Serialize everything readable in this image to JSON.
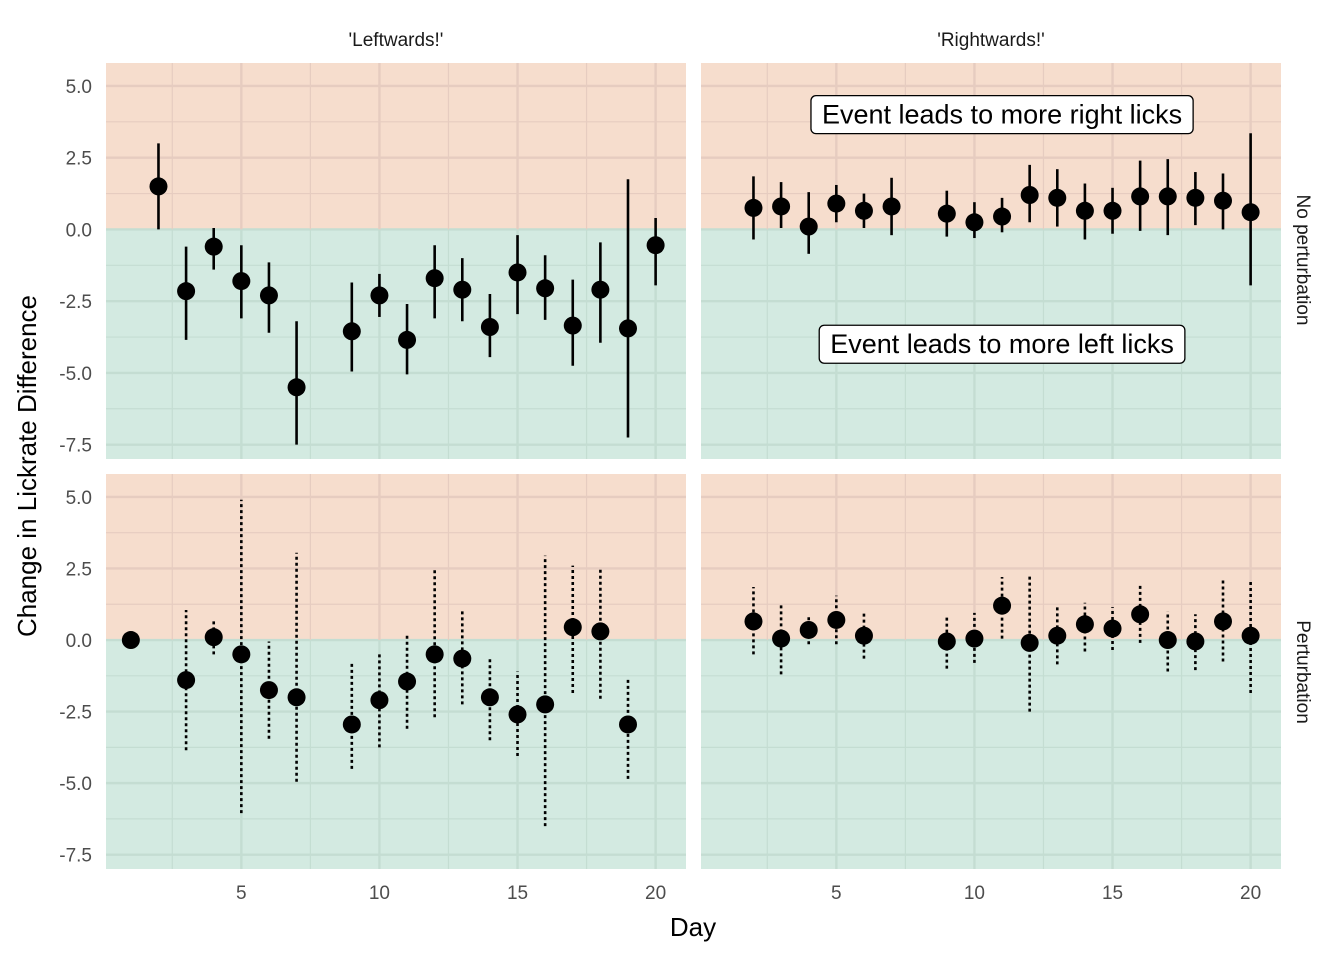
{
  "chart_data": {
    "type": "scatter",
    "xlabel": "Day",
    "ylabel": "Change in Lickrate Difference",
    "xlim": [
      0.1,
      21.1
    ],
    "ylim": [
      -8.0,
      5.8
    ],
    "x_ticks": [
      5,
      10,
      15,
      20
    ],
    "y_ticks": [
      -7.5,
      -5.0,
      -2.5,
      0.0,
      2.5,
      5.0
    ],
    "x_tick_labels": [
      "5",
      "10",
      "15",
      "20"
    ],
    "y_tick_labels": [
      "-7.5",
      "-5.0",
      "-2.5",
      "0.0",
      "2.5",
      "5.0"
    ],
    "grid": true,
    "column_labels": [
      "'Leftwards!'",
      "'Rightwards!'"
    ],
    "row_labels": [
      "No perturbation",
      "Perturbation"
    ],
    "region_colors": {
      "positive": "#f6ddcd",
      "negative": "#d3eae1",
      "grid": "#e6ccc0",
      "grid_negative": "#c4ddd2"
    },
    "annotations": [
      {
        "panel": "no-perturbation-rightwards",
        "text": "Event leads to more right licks",
        "x": 11,
        "y": 4.0
      },
      {
        "panel": "no-perturbation-rightwards",
        "text": "Event leads to more left licks",
        "x": 11,
        "y": -4.0
      }
    ],
    "panels": [
      {
        "row": "No perturbation",
        "column": "'Leftwards!'",
        "linestyle": "solid",
        "points": [
          {
            "x": 2,
            "y": 1.5,
            "lo": 0.0,
            "hi": 3.0
          },
          {
            "x": 3,
            "y": -2.15,
            "lo": -3.85,
            "hi": -0.6
          },
          {
            "x": 4,
            "y": -0.6,
            "lo": -1.4,
            "hi": 0.05
          },
          {
            "x": 5,
            "y": -1.8,
            "lo": -3.1,
            "hi": -0.55
          },
          {
            "x": 6,
            "y": -2.3,
            "lo": -3.6,
            "hi": -1.15
          },
          {
            "x": 7,
            "y": -5.5,
            "lo": -7.5,
            "hi": -3.2
          },
          {
            "x": 9,
            "y": -3.55,
            "lo": -4.95,
            "hi": -1.85
          },
          {
            "x": 10,
            "y": -2.3,
            "lo": -3.05,
            "hi": -1.55
          },
          {
            "x": 11,
            "y": -3.85,
            "lo": -5.05,
            "hi": -2.6
          },
          {
            "x": 12,
            "y": -1.7,
            "lo": -3.1,
            "hi": -0.55
          },
          {
            "x": 13,
            "y": -2.1,
            "lo": -3.2,
            "hi": -1.0
          },
          {
            "x": 14,
            "y": -3.4,
            "lo": -4.45,
            "hi": -2.25
          },
          {
            "x": 15,
            "y": -1.5,
            "lo": -2.95,
            "hi": -0.2
          },
          {
            "x": 16,
            "y": -2.05,
            "lo": -3.15,
            "hi": -0.9
          },
          {
            "x": 17,
            "y": -3.35,
            "lo": -4.75,
            "hi": -1.75
          },
          {
            "x": 18,
            "y": -2.1,
            "lo": -3.95,
            "hi": -0.45
          },
          {
            "x": 19,
            "y": -3.45,
            "lo": -7.25,
            "hi": 1.75
          },
          {
            "x": 20,
            "y": -0.55,
            "lo": -1.95,
            "hi": 0.4
          }
        ]
      },
      {
        "row": "No perturbation",
        "column": "'Rightwards!'",
        "linestyle": "solid",
        "points": [
          {
            "x": 2,
            "y": 0.75,
            "lo": -0.35,
            "hi": 1.85
          },
          {
            "x": 3,
            "y": 0.8,
            "lo": 0.05,
            "hi": 1.65
          },
          {
            "x": 4,
            "y": 0.1,
            "lo": -0.85,
            "hi": 1.3
          },
          {
            "x": 5,
            "y": 0.9,
            "lo": 0.25,
            "hi": 1.55
          },
          {
            "x": 6,
            "y": 0.65,
            "lo": 0.05,
            "hi": 1.25
          },
          {
            "x": 7,
            "y": 0.8,
            "lo": -0.2,
            "hi": 1.8
          },
          {
            "x": 9,
            "y": 0.55,
            "lo": -0.25,
            "hi": 1.35
          },
          {
            "x": 10,
            "y": 0.25,
            "lo": -0.3,
            "hi": 0.95
          },
          {
            "x": 11,
            "y": 0.45,
            "lo": -0.1,
            "hi": 1.1
          },
          {
            "x": 12,
            "y": 1.2,
            "lo": 0.25,
            "hi": 2.25
          },
          {
            "x": 13,
            "y": 1.1,
            "lo": 0.1,
            "hi": 2.1
          },
          {
            "x": 14,
            "y": 0.65,
            "lo": -0.35,
            "hi": 1.6
          },
          {
            "x": 15,
            "y": 0.65,
            "lo": -0.15,
            "hi": 1.45
          },
          {
            "x": 16,
            "y": 1.15,
            "lo": -0.05,
            "hi": 2.4
          },
          {
            "x": 17,
            "y": 1.15,
            "lo": -0.2,
            "hi": 2.45
          },
          {
            "x": 18,
            "y": 1.1,
            "lo": 0.15,
            "hi": 2.0
          },
          {
            "x": 19,
            "y": 1.0,
            "lo": 0.0,
            "hi": 1.95
          },
          {
            "x": 20,
            "y": 0.6,
            "lo": -1.95,
            "hi": 3.35
          }
        ]
      },
      {
        "row": "Perturbation",
        "column": "'Leftwards!'",
        "linestyle": "dotted",
        "points": [
          {
            "x": 1,
            "y": 0.0,
            "lo": 0.0,
            "hi": 0.0
          },
          {
            "x": 3,
            "y": -1.4,
            "lo": -3.85,
            "hi": 1.05
          },
          {
            "x": 4,
            "y": 0.1,
            "lo": -0.5,
            "hi": 0.65
          },
          {
            "x": 5,
            "y": -0.5,
            "lo": -6.05,
            "hi": 4.9
          },
          {
            "x": 6,
            "y": -1.75,
            "lo": -3.45,
            "hi": -0.05
          },
          {
            "x": 7,
            "y": -2.0,
            "lo": -4.95,
            "hi": 3.05
          },
          {
            "x": 9,
            "y": -2.95,
            "lo": -4.5,
            "hi": -0.75
          },
          {
            "x": 10,
            "y": -2.1,
            "lo": -3.75,
            "hi": -0.45
          },
          {
            "x": 11,
            "y": -1.45,
            "lo": -3.1,
            "hi": 0.2
          },
          {
            "x": 12,
            "y": -0.5,
            "lo": -2.7,
            "hi": 2.5
          },
          {
            "x": 13,
            "y": -0.65,
            "lo": -2.25,
            "hi": 1.05
          },
          {
            "x": 14,
            "y": -2.0,
            "lo": -3.5,
            "hi": -0.6
          },
          {
            "x": 15,
            "y": -2.6,
            "lo": -4.05,
            "hi": -1.1
          },
          {
            "x": 16,
            "y": -2.25,
            "lo": -6.5,
            "hi": 2.95
          },
          {
            "x": 17,
            "y": 0.45,
            "lo": -1.85,
            "hi": 2.6
          },
          {
            "x": 18,
            "y": 0.3,
            "lo": -2.05,
            "hi": 2.55
          },
          {
            "x": 19,
            "y": -2.95,
            "lo": -4.85,
            "hi": -1.3
          }
        ]
      },
      {
        "row": "Perturbation",
        "column": "'Rightwards!'",
        "linestyle": "dotted",
        "points": [
          {
            "x": 2,
            "y": 0.65,
            "lo": -0.5,
            "hi": 1.85
          },
          {
            "x": 3,
            "y": 0.05,
            "lo": -1.2,
            "hi": 1.25
          },
          {
            "x": 4,
            "y": 0.35,
            "lo": -0.15,
            "hi": 0.85
          },
          {
            "x": 5,
            "y": 0.7,
            "lo": -0.15,
            "hi": 1.55
          },
          {
            "x": 6,
            "y": 0.15,
            "lo": -0.65,
            "hi": 0.95
          },
          {
            "x": 9,
            "y": -0.05,
            "lo": -1.0,
            "hi": 0.8
          },
          {
            "x": 10,
            "y": 0.05,
            "lo": -0.8,
            "hi": 0.95
          },
          {
            "x": 11,
            "y": 1.2,
            "lo": 0.05,
            "hi": 2.2
          },
          {
            "x": 12,
            "y": -0.1,
            "lo": -2.5,
            "hi": 2.3
          },
          {
            "x": 13,
            "y": 0.15,
            "lo": -0.85,
            "hi": 1.15
          },
          {
            "x": 14,
            "y": 0.55,
            "lo": -0.4,
            "hi": 1.3
          },
          {
            "x": 15,
            "y": 0.4,
            "lo": -0.35,
            "hi": 1.15
          },
          {
            "x": 16,
            "y": 0.9,
            "lo": -0.1,
            "hi": 1.95
          },
          {
            "x": 17,
            "y": 0.0,
            "lo": -1.1,
            "hi": 1.0
          },
          {
            "x": 18,
            "y": -0.05,
            "lo": -1.05,
            "hi": 0.9
          },
          {
            "x": 19,
            "y": 0.65,
            "lo": -0.75,
            "hi": 2.1
          },
          {
            "x": 20,
            "y": 0.15,
            "lo": -1.85,
            "hi": 2.1
          }
        ]
      }
    ]
  }
}
